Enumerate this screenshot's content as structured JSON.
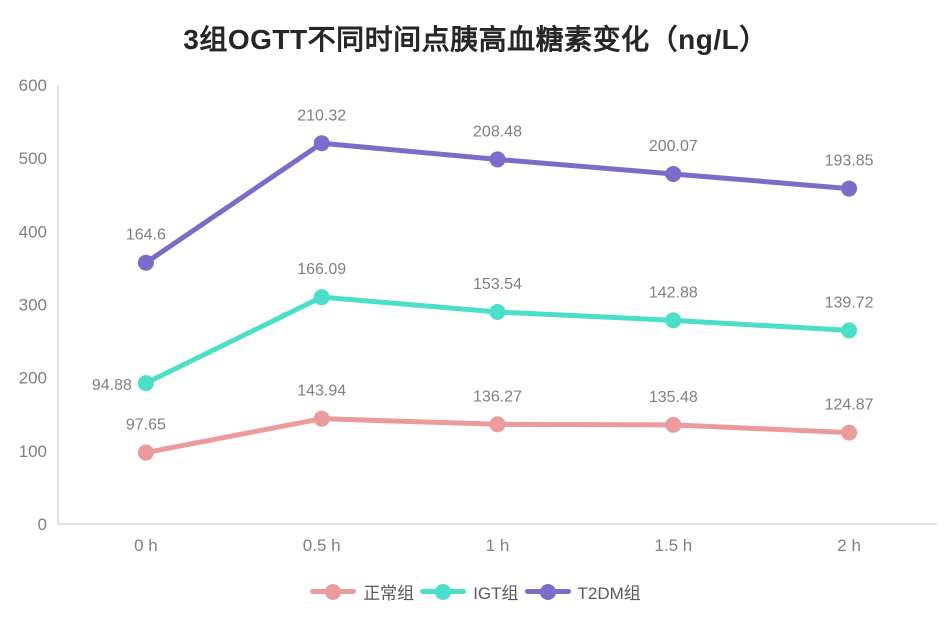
{
  "chart_data": {
    "type": "line",
    "stacked": true,
    "title": "3组OGTT不同时间点胰高血糖素变化（ng/L）",
    "categories": [
      "0 h",
      "0.5 h",
      "1 h",
      "1.5 h",
      "2 h"
    ],
    "series": [
      {
        "name": "正常组",
        "color": "#EB9B9B",
        "values": [
          97.65,
          143.94,
          136.27,
          135.48,
          124.87
        ]
      },
      {
        "name": "IGT组",
        "color": "#4ADFC9",
        "values": [
          94.88,
          166.09,
          153.54,
          142.88,
          139.72
        ]
      },
      {
        "name": "T2DM组",
        "color": "#7B6CC9",
        "values": [
          164.6,
          210.32,
          208.48,
          200.07,
          193.85
        ]
      }
    ],
    "xlabel": "",
    "ylabel": "",
    "ylim": [
      0,
      600
    ],
    "yticks": [
      0,
      100,
      200,
      300,
      400,
      500,
      600
    ],
    "legend_position": "bottom",
    "grid": false,
    "data_labels_shown": true
  },
  "colors": {
    "axis_line": "#D9D9D9",
    "tick_label": "#808080",
    "data_label": "#808080",
    "legend_text": "#595959",
    "title_text": "#262626",
    "background": "#FFFFFF"
  }
}
